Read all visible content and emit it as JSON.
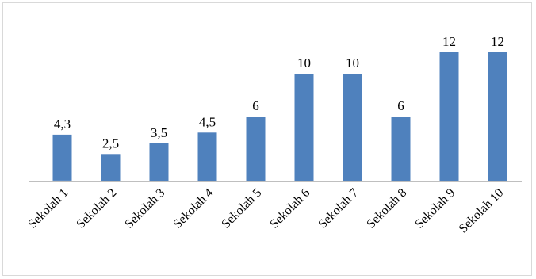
{
  "chart_data": {
    "type": "bar",
    "title": "",
    "xlabel": "",
    "ylabel": "",
    "categories": [
      "Sekolah 1",
      "Sekolah 2",
      "Sekolah 3",
      "Sekolah 4",
      "Sekolah 5",
      "Sekolah 6",
      "Sekolah 7",
      "Sekolah 8",
      "Sekolah 9",
      "Sekolah 10"
    ],
    "values": [
      4.3,
      2.5,
      3.5,
      4.5,
      6,
      10,
      10,
      6,
      12,
      12
    ],
    "data_labels": [
      "4,3",
      "2,5",
      "3,5",
      "4,5",
      "6",
      "10",
      "10",
      "6",
      "12",
      "12"
    ],
    "ylim": [
      0,
      12
    ],
    "grid": false,
    "legend": "none",
    "bar_color": "#4f81bd",
    "axis_color": "#bfbfbf"
  }
}
